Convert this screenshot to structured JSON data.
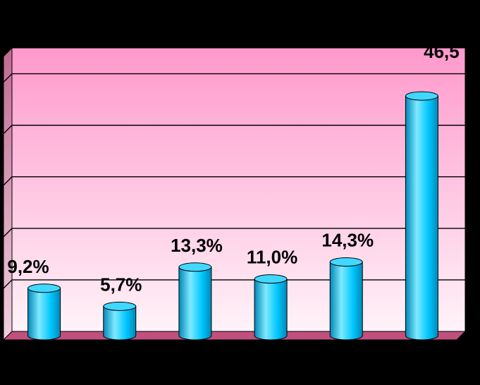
{
  "chart_data": {
    "type": "bar",
    "style": "3d-cylinder",
    "categories": [
      "",
      "",
      "",
      "",
      "",
      ""
    ],
    "values": [
      9.2,
      5.7,
      13.3,
      11.0,
      14.3,
      46.5
    ],
    "data_labels": [
      "9,2%",
      "5,7%",
      "13,3%",
      "11,0%",
      "14,3%",
      "46,5"
    ],
    "title": "",
    "xlabel": "",
    "ylabel": "",
    "ylim": [
      0,
      55
    ],
    "gridline_step": 10,
    "grid": true,
    "legend": "none",
    "colors": {
      "background": "#000000",
      "plot_top": "#ff99cc",
      "plot_bottom": "#fff3f8",
      "floor": "#c0507e",
      "bar_light": "#7fe9ff",
      "bar_mid": "#00c8ff",
      "bar_dark": "#0088b8",
      "bar_top": "#40d8ff"
    }
  }
}
